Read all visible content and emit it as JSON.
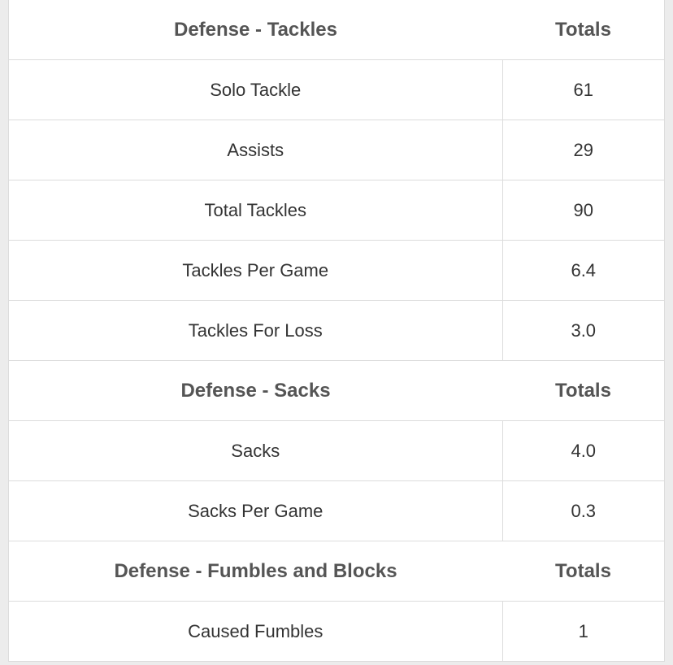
{
  "sections": [
    {
      "title": "Defense - Tackles",
      "column": "Totals",
      "rows": [
        [
          "Solo Tackle",
          "61"
        ],
        [
          "Assists",
          "29"
        ],
        [
          "Total Tackles",
          "90"
        ],
        [
          "Tackles Per Game",
          "6.4"
        ],
        [
          "Tackles For Loss",
          "3.0"
        ]
      ]
    },
    {
      "title": "Defense - Sacks",
      "column": "Totals",
      "rows": [
        [
          "Sacks",
          "4.0"
        ],
        [
          "Sacks Per Game",
          "0.3"
        ]
      ]
    },
    {
      "title": "Defense - Fumbles and Blocks",
      "column": "Totals",
      "rows": [
        [
          "Caused Fumbles",
          "1"
        ]
      ]
    }
  ]
}
